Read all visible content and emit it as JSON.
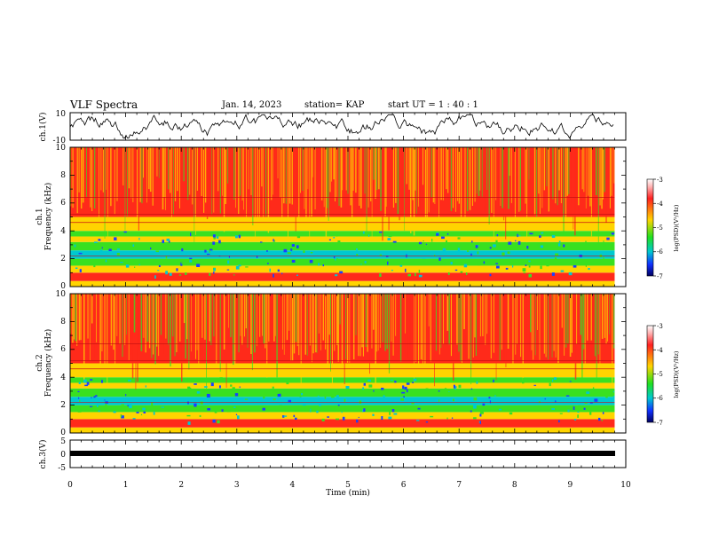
{
  "header": {
    "title": "VLF Spectra",
    "date": "Jan. 14, 2023",
    "station": "station= KAP",
    "start": "start  UT  =   1 : 40 : 1"
  },
  "colors": {
    "hot": "#ff2a1a",
    "warm": "#ffd400",
    "cool": "#39e020",
    "cold": "#00c8d0",
    "deep": "#1a40ff",
    "trace": "#000000"
  },
  "chart_data": [
    {
      "type": "line",
      "name": "ch1-waveform",
      "ylabel": "ch.1(V)",
      "ylim": [
        -10,
        10
      ],
      "yticks": [
        "10",
        "-10"
      ],
      "xlim": [
        0,
        10
      ]
    },
    {
      "type": "heatmap",
      "name": "ch1-spectrogram",
      "ylabel_top": "ch.1",
      "ylabel": "Frequency (kHz)",
      "ylim": [
        0,
        10
      ],
      "yticks": [
        "0",
        "2",
        "4",
        "6",
        "8",
        "10"
      ],
      "xlim": [
        0,
        9.8
      ],
      "colorbar": {
        "label": "log(PSD)(V²/Hz)",
        "range": [
          -7,
          -3
        ],
        "ticks": [
          "-3",
          "-4",
          "-5",
          "-6",
          "-7"
        ]
      }
    },
    {
      "type": "heatmap",
      "name": "ch2-spectrogram",
      "ylabel_top": "ch.2",
      "ylabel": "Frequency (kHz)",
      "ylim": [
        0,
        10
      ],
      "yticks": [
        "0",
        "2",
        "4",
        "6",
        "8",
        "10"
      ],
      "xlim": [
        0,
        9.8
      ],
      "colorbar": {
        "label": "log(PSD)(V²/Hz)",
        "range": [
          -7,
          -3
        ],
        "ticks": [
          "-3",
          "-4",
          "-5",
          "-6",
          "-7"
        ]
      }
    },
    {
      "type": "line",
      "name": "ch3-waveform",
      "ylabel": "ch.3(V)",
      "ylim": [
        -5,
        5
      ],
      "yticks": [
        "5",
        "0",
        "-5"
      ],
      "xlim": [
        0,
        10
      ],
      "xlabel": "Time (min)",
      "xticks": [
        "0",
        "1",
        "2",
        "3",
        "4",
        "5",
        "6",
        "7",
        "8",
        "9",
        "10"
      ]
    }
  ]
}
